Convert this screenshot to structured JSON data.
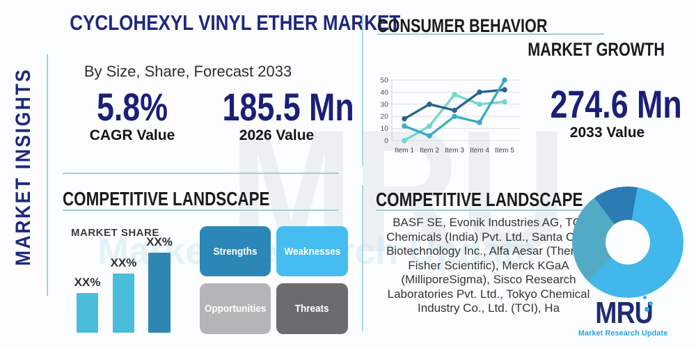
{
  "watermark": {
    "text": "MRU",
    "tagline": "Market Research Update"
  },
  "left_rail": {
    "label": "MARKET INSIGHTS"
  },
  "header": {
    "title": "CYCLOHEXYL VINYL ETHER MARKET",
    "subtitle": "By Size, Share, Forecast 2033"
  },
  "stats": {
    "cagr": {
      "value": "5.8%",
      "label": "CAGR Value"
    },
    "base_year": {
      "value": "185.5 Mn",
      "label": "2026 Value"
    },
    "forecast": {
      "value": "274.6 Mn",
      "label": "2033 Value"
    }
  },
  "sections": {
    "consumer_behavior": {
      "title": "CONSUMER BEHAVIOR"
    },
    "market_growth": {
      "title": "MARKET GROWTH"
    },
    "competitive_landscape_left": {
      "title": "COMPETITIVE LANDSCAPE",
      "chart_label": "MARKET SHARE"
    },
    "competitive_landscape_right": {
      "title": "COMPETITIVE LANDSCAPE",
      "companies": "BASF SE, Evonik Industries AG, TCI Chemicals (India) Pvt. Ltd., Santa Cruz Biotechnology Inc., Alfa Aesar (Thermo Fisher Scientific), Merck KGaA (MilliporeSigma), Sisco Research Laboratories Pvt. Ltd., Tokyo Chemical Industry Co., Ltd. (TCI), Ha"
    }
  },
  "swot": [
    {
      "label": "Strengths",
      "color": "#2a87b8"
    },
    {
      "label": "Weaknesses",
      "color": "#45bdf1"
    },
    {
      "label": "Opportunities",
      "color": "#b5b5b7"
    },
    {
      "label": "Threats",
      "color": "#6c6c6e"
    }
  ],
  "logo": {
    "text": "MRU",
    "tagline": "Market Research Update"
  },
  "colors": {
    "accent_navy": "#1b1f78",
    "heading_dark": "#1b1b1b",
    "divider_teal": "#9fd0d8"
  },
  "chart_data": [
    {
      "type": "line",
      "name": "consumer-behavior-trend",
      "title": "CONSUMER BEHAVIOR",
      "categories": [
        "Item 1",
        "Item 2",
        "Item 3",
        "Item 4",
        "Item 5"
      ],
      "series": [
        {
          "name": "light-cyan-series",
          "color": "#74d6cf",
          "values": [
            0,
            12,
            38,
            30,
            32
          ]
        },
        {
          "name": "dark-blue-series",
          "color": "#2a648c",
          "values": [
            18,
            30,
            25,
            40,
            42
          ]
        },
        {
          "name": "teal-series",
          "color": "#3dabc2",
          "values": [
            12,
            4,
            20,
            15,
            50
          ]
        }
      ],
      "xlabel": "",
      "ylabel": "",
      "ylim": [
        0,
        50
      ],
      "yticks": [
        0,
        10,
        20,
        30,
        40,
        50
      ],
      "grid": true,
      "legend": "none"
    },
    {
      "type": "bar",
      "name": "market-share",
      "title": "MARKET SHARE",
      "categories": [
        "",
        "",
        ""
      ],
      "labels": [
        "XX%",
        "XX%",
        "XX%"
      ],
      "values": [
        25,
        37,
        50
      ],
      "ylim": [
        0,
        50
      ],
      "colors": [
        "#49bdda",
        "#49bdda",
        "#2e86b2"
      ]
    },
    {
      "type": "pie",
      "name": "competitor-share-donut",
      "donut": true,
      "start_angle_deg": 10,
      "segments": [
        {
          "name": "light-blue-segment",
          "value": 60,
          "color": "#41b7ec"
        },
        {
          "name": "teal-segment",
          "value": 27,
          "color": "#52aac4"
        },
        {
          "name": "dark-blue-segment",
          "value": 13,
          "color": "#2b7cb4"
        }
      ]
    }
  ]
}
